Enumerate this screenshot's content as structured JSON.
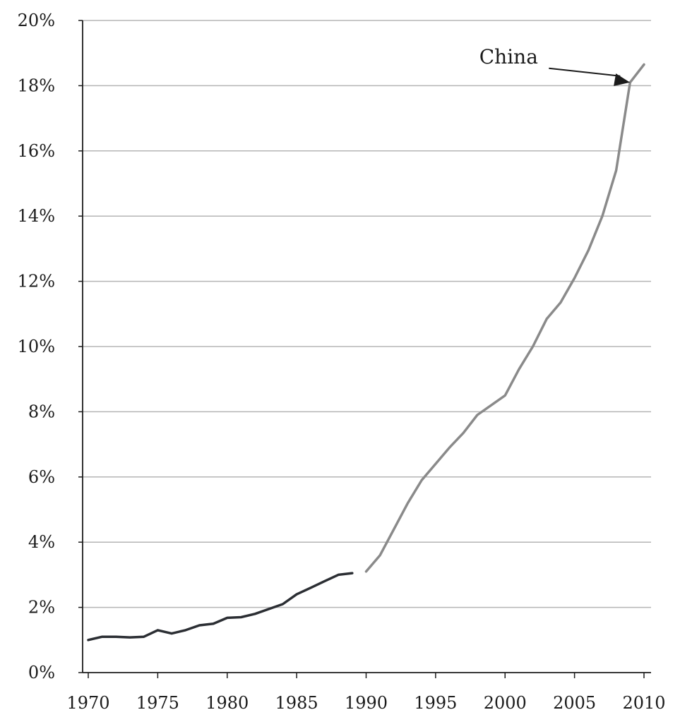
{
  "chart_data": {
    "type": "line",
    "title": "",
    "xlabel": "",
    "ylabel": "",
    "xlim": [
      1970,
      2010
    ],
    "ylim": [
      0,
      20
    ],
    "grid": "horizontal",
    "x_ticks": [
      1970,
      1975,
      1980,
      1985,
      1990,
      1995,
      2000,
      2005,
      2010
    ],
    "y_ticks": [
      0,
      2,
      4,
      6,
      8,
      10,
      12,
      14,
      16,
      18,
      20
    ],
    "x_tick_labels": [
      "1970",
      "1975",
      "1980",
      "1985",
      "1990",
      "1995",
      "2000",
      "2005",
      "2010"
    ],
    "y_tick_labels": [
      "0%",
      "2%",
      "4%",
      "6%",
      "8%",
      "10%",
      "12%",
      "14%",
      "16%",
      "18%",
      "20%"
    ],
    "series": [
      {
        "color": "#2b2e33",
        "x": [
          1970,
          1971,
          1972,
          1973,
          1974,
          1975,
          1976,
          1977,
          1978,
          1979,
          1980,
          1981,
          1982,
          1983,
          1984,
          1985,
          1986,
          1987,
          1988,
          1989
        ],
        "values": [
          1.0,
          1.1,
          1.1,
          1.08,
          1.1,
          1.3,
          1.2,
          1.3,
          1.45,
          1.5,
          1.68,
          1.7,
          1.8,
          1.95,
          2.1,
          2.4,
          2.6,
          2.8,
          3.0,
          3.05
        ]
      },
      {
        "name": "China",
        "color": "#8a8a8a",
        "x": [
          1990,
          1991,
          1992,
          1993,
          1994,
          1995,
          1996,
          1997,
          1998,
          1999,
          2000,
          2001,
          2002,
          2003,
          2004,
          2005,
          2006,
          2007,
          2008,
          2009,
          2010
        ],
        "values": [
          3.1,
          3.6,
          4.4,
          5.2,
          5.9,
          6.4,
          6.9,
          7.35,
          7.9,
          8.2,
          8.5,
          9.3,
          10.0,
          10.85,
          11.35,
          12.1,
          12.95,
          14.0,
          15.4,
          18.1,
          18.65
        ]
      }
    ],
    "annotations": [
      {
        "text": "China",
        "x": 2009,
        "y": 18.1,
        "arrow": true
      }
    ]
  }
}
